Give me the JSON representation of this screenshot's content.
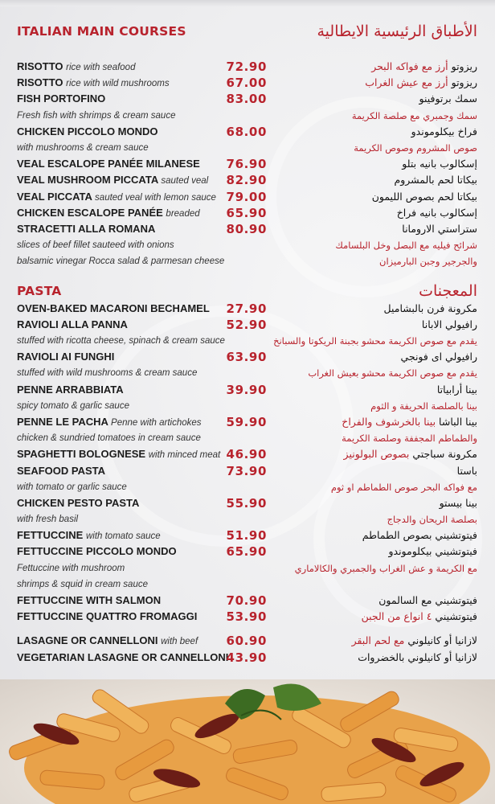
{
  "colors": {
    "accent": "#b8232d",
    "background": "#ececee",
    "text": "#1c1c1c"
  },
  "sections": [
    {
      "title_en": "ITALIAN MAIN COURSES",
      "title_ar": "الأطباق الرئيسية الايطالية",
      "rows": [
        {
          "type": "item",
          "name": "RISOTTO",
          "desc": "rice with seafood",
          "price": "72.90",
          "ar": "ريزوتو",
          "ar_desc": "أرز مع فواكه البحر"
        },
        {
          "type": "item",
          "name": "RISOTTO",
          "desc": "rice with wild mushrooms",
          "price": "67.00",
          "ar": "ريزوتو",
          "ar_desc": "أرز مع عيش الغراب"
        },
        {
          "type": "item",
          "name": "FISH PORTOFINO",
          "desc": "",
          "price": "83.00",
          "ar": "سمك برتوفينو",
          "ar_desc": ""
        },
        {
          "type": "note",
          "en": "Fresh fish with shrimps & cream sauce",
          "ar": "سمك وجمبري مع صلصة الكريمة"
        },
        {
          "type": "item",
          "name": "CHICKEN PICCOLO MONDO",
          "desc": "",
          "price": "68.00",
          "ar": "فراخ بيكلوموندو",
          "ar_desc": ""
        },
        {
          "type": "note",
          "en": "with mushrooms & cream sauce",
          "ar": "صوص المشروم وصوص الكريمة"
        },
        {
          "type": "item",
          "name": "VEAL ESCALOPE PANÉE MILANESE",
          "desc": "",
          "price": "76.90",
          "ar": "إسكالوب بانيه بتلو",
          "ar_desc": ""
        },
        {
          "type": "item",
          "name": "VEAL MUSHROOM PICCATA",
          "desc": "sauted veal",
          "price": "82.90",
          "ar": "بيكاتا لحم بالمشروم",
          "ar_desc": ""
        },
        {
          "type": "item",
          "name": "VEAL PICCATA",
          "desc": "sauted veal with lemon sauce",
          "price": "79.00",
          "ar": "بيكاتا لحم بصوص الليمون",
          "ar_desc": ""
        },
        {
          "type": "item",
          "name": "CHICKEN ESCALOPE PANÉE",
          "desc": "breaded",
          "price": "65.90",
          "ar": "إسكالوب بانيه فراخ",
          "ar_desc": ""
        },
        {
          "type": "item",
          "name": "STRACETTI ALLA ROMANA",
          "desc": "",
          "price": "80.90",
          "ar": "ستراستي الارومانا",
          "ar_desc": ""
        },
        {
          "type": "note",
          "en": "slices of beef fillet sauteed with onions",
          "ar": "شرائح فيليه مع البصل وخل البلسامك"
        },
        {
          "type": "note",
          "en": "balsamic vinegar Rocca salad & parmesan cheese",
          "ar": "والجرجير وجبن البارميزان"
        }
      ]
    },
    {
      "title_en": "PASTA",
      "title_ar": "المعجنات",
      "rows": [
        {
          "type": "item",
          "name": "OVEN-BAKED MACARONI BECHAMEL",
          "desc": "",
          "price": "27.90",
          "ar": "مكرونة فرن بالبشاميل",
          "ar_desc": ""
        },
        {
          "type": "item",
          "name": "RAVIOLI ALLA PANNA",
          "desc": "",
          "price": "52.90",
          "ar": "رافيولي الابانا",
          "ar_desc": ""
        },
        {
          "type": "note",
          "en": "stuffed with ricotta cheese, spinach & cream sauce",
          "ar": "يقدم مع صوص الكريمة محشو بجبنة الريكوتا والسبانخ"
        },
        {
          "type": "item",
          "name": "RAVIOLI AI FUNGHI",
          "desc": "",
          "price": "63.90",
          "ar": "رافيولي اى فونجي",
          "ar_desc": ""
        },
        {
          "type": "note",
          "en": "stuffed with wild mushrooms & cream sauce",
          "ar": "يقدم مع صوص الكريمة محشو بعيش الغراب"
        },
        {
          "type": "item",
          "name": "PENNE ARRABBIATA",
          "desc": "",
          "price": "39.90",
          "ar": "بينا أرابياتا",
          "ar_desc": ""
        },
        {
          "type": "note",
          "en": "spicy tomato & garlic sauce",
          "ar": "بينا بالصلصة الحريفة و الثوم"
        },
        {
          "type": "item",
          "name": "PENNE LE PACHA",
          "desc": "Penne with artichokes",
          "price": "59.90",
          "ar": "بينا الباشا",
          "ar_desc": "بينا بالخرشوف والفراخ"
        },
        {
          "type": "note",
          "en": "chicken & sundried tomatoes in cream sauce",
          "ar": "والطماطم المجففة وصلصة الكريمة"
        },
        {
          "type": "item",
          "name": "SPAGHETTI BOLOGNESE",
          "desc": "with minced meat",
          "price": "46.90",
          "ar": "مكرونة سباجتي",
          "ar_desc": "بصوص البولونيز"
        },
        {
          "type": "item",
          "name": "SEAFOOD PASTA",
          "desc": "",
          "price": "73.90",
          "ar": "باستا",
          "ar_desc": ""
        },
        {
          "type": "note",
          "en": "with tomato or garlic sauce",
          "ar": "مع فواكه البحر  صوص الطماطم او ثوم"
        },
        {
          "type": "item",
          "name": "CHICKEN PESTO PASTA",
          "desc": "",
          "price": "55.90",
          "ar": "بينا بيستو",
          "ar_desc": ""
        },
        {
          "type": "note",
          "en": "with fresh basil",
          "ar": "بصلصة الريحان والدجاج"
        },
        {
          "type": "item",
          "name": "FETTUCCINE",
          "desc": "with tomato sauce",
          "price": "51.90",
          "ar": "فيتوتشيني بصوص الطماطم",
          "ar_desc": ""
        },
        {
          "type": "item",
          "name": "FETTUCCINE PICCOLO MONDO",
          "desc": "",
          "price": "65.90",
          "ar": "فيتوتشيني بيكلوموندو",
          "ar_desc": ""
        },
        {
          "type": "note",
          "en": "Fettuccine with mushroom",
          "ar": "مع الكريمة و عش الغراب والجمبري والكالاماري"
        },
        {
          "type": "note",
          "en": " shrimps & squid in cream sauce",
          "ar": ""
        },
        {
          "type": "item",
          "name": "FETTUCCINE WITH SALMON",
          "desc": "",
          "price": "70.90",
          "ar": "فيتوتشيني مع السالمون",
          "ar_desc": ""
        },
        {
          "type": "item",
          "name": "FETTUCCINE QUATTRO FROMAGGI",
          "desc": "",
          "price": "53.90",
          "ar": "فيتوتشيني",
          "ar_desc": "٤ انواع من الجبن"
        },
        {
          "type": "spacer"
        },
        {
          "type": "item",
          "name": "LASAGNE OR CANNELLONI",
          "desc": "with beef",
          "price": "60.90",
          "ar": "لازانيا  أو كانيلوني",
          "ar_desc": "مع لحم البقر"
        },
        {
          "type": "item",
          "name": "VEGETARIAN LASAGNE OR CANNELLONI",
          "desc": "",
          "price": "43.90",
          "ar": "لازانيا أو كانيلوني بالخضروات",
          "ar_desc": ""
        }
      ]
    }
  ]
}
